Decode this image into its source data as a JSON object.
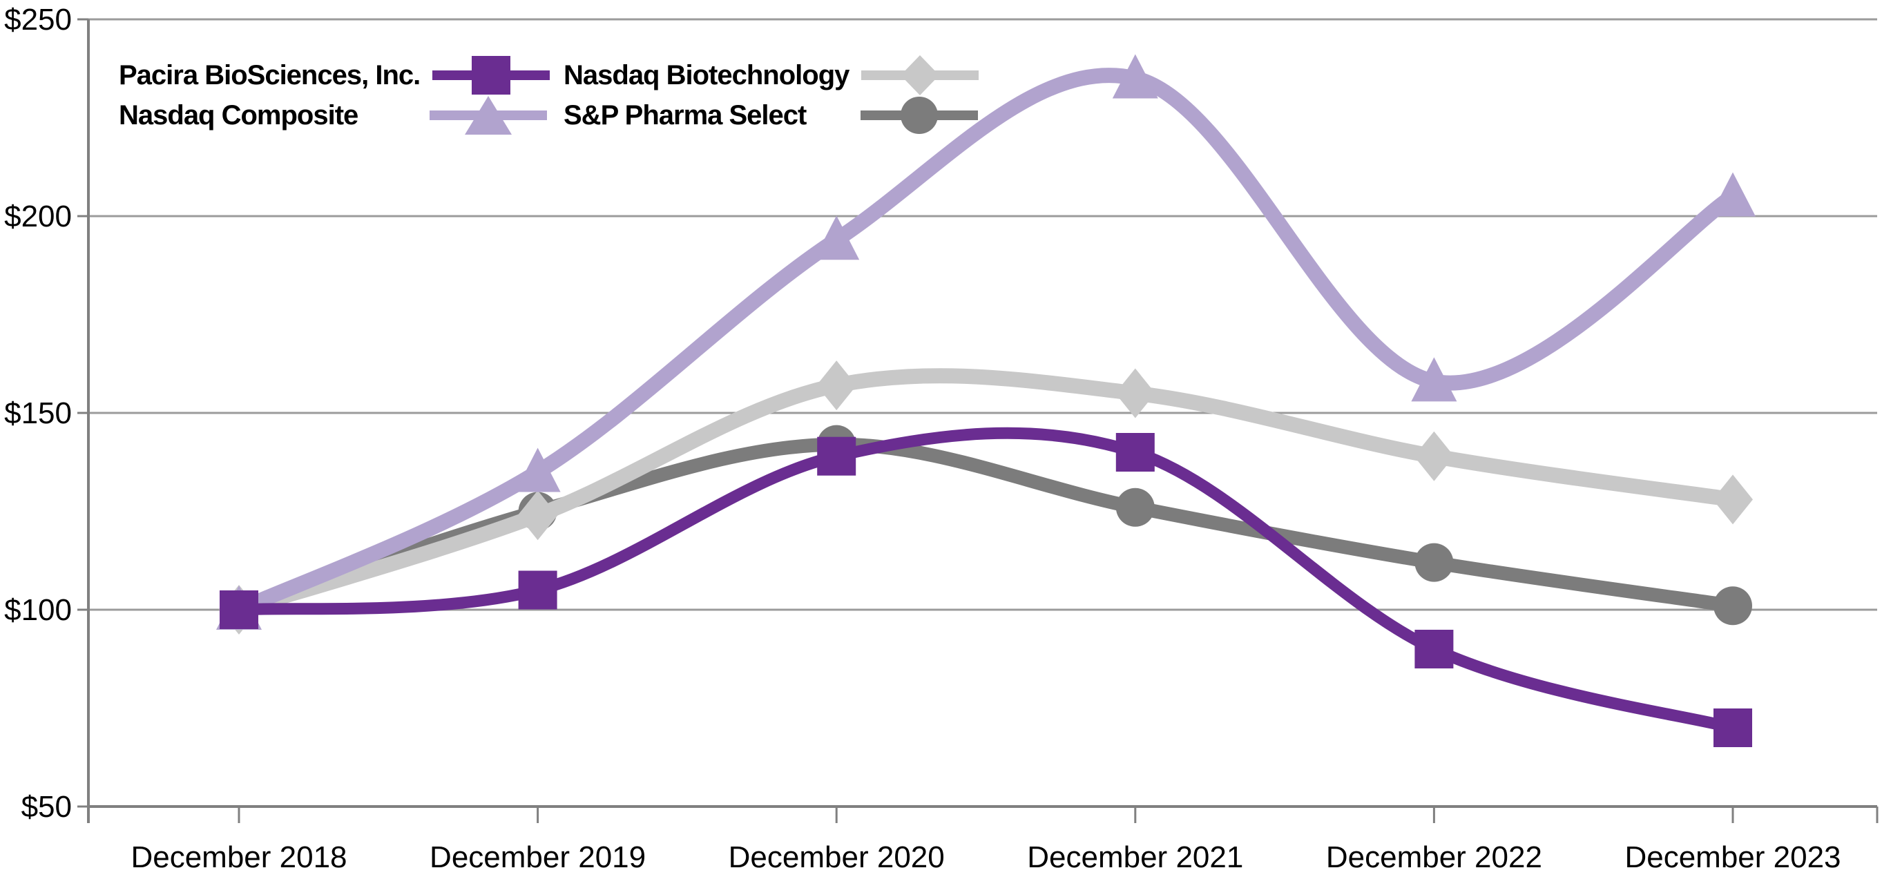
{
  "chart_data": {
    "type": "line",
    "title": "",
    "categories": [
      "December 2018",
      "December 2019",
      "December 2020",
      "December 2021",
      "December 2022",
      "December 2023"
    ],
    "y_tick_labels": [
      "$250",
      "$200",
      "$150",
      "$100",
      "$50"
    ],
    "y_tick_values": [
      250,
      200,
      150,
      100,
      50
    ],
    "ylim": [
      50,
      250
    ],
    "grid": true,
    "legend_position": "top-left-inside",
    "line_style": "smooth",
    "series": [
      {
        "name": "Pacira BioSciences, Inc.",
        "marker": "square",
        "color": "#6A2D91",
        "values": [
          100,
          105,
          139,
          140,
          90,
          70
        ]
      },
      {
        "name": "Nasdaq Composite",
        "marker": "triangle",
        "color": "#B1A3CE",
        "values": [
          100,
          135,
          194,
          235,
          158,
          205
        ]
      },
      {
        "name": "Nasdaq Biotechnology",
        "marker": "diamond",
        "color": "#C8C8C8",
        "values": [
          100,
          124,
          157,
          155,
          139,
          128
        ]
      },
      {
        "name": "S&P Pharma Select",
        "marker": "circle",
        "color": "#7C7C7C",
        "values": [
          100,
          125,
          142,
          126,
          112,
          101
        ]
      }
    ],
    "colors": {
      "gridline": "#9B9B9B",
      "axis": "#808080",
      "text": "#000000",
      "background": "#FFFFFF"
    }
  }
}
